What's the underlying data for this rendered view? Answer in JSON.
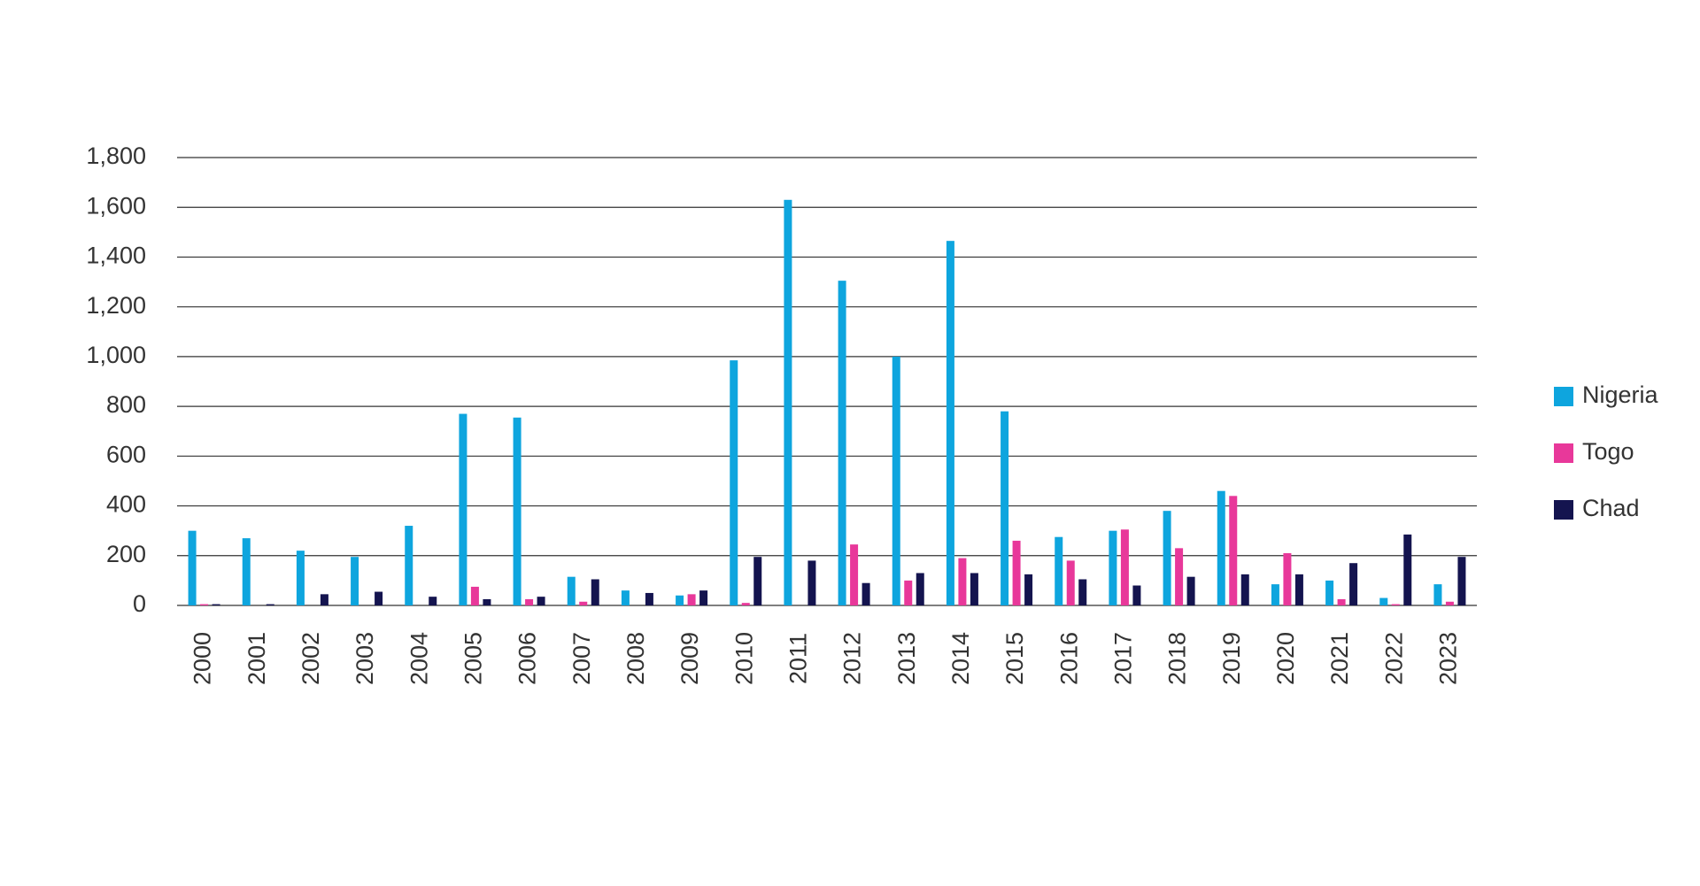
{
  "chart_data": {
    "type": "bar",
    "categories": [
      "2000",
      "2001",
      "2002",
      "2003",
      "2004",
      "2005",
      "2006",
      "2007",
      "2008",
      "2009",
      "2010",
      "2011",
      "2012",
      "2013",
      "2014",
      "2015",
      "2016",
      "2017",
      "2018",
      "2019",
      "2020",
      "2021",
      "2022",
      "2023"
    ],
    "series": [
      {
        "name": "Nigeria",
        "color": "#0ea5de",
        "values": [
          300,
          270,
          220,
          195,
          320,
          770,
          755,
          115,
          60,
          40,
          985,
          1630,
          1305,
          1000,
          1465,
          780,
          275,
          300,
          380,
          460,
          85,
          100,
          30,
          85
        ]
      },
      {
        "name": "Togo",
        "color": "#e8389a",
        "values": [
          5,
          0,
          0,
          0,
          0,
          75,
          25,
          15,
          0,
          45,
          10,
          0,
          245,
          100,
          190,
          260,
          180,
          305,
          230,
          440,
          210,
          25,
          5,
          15
        ]
      },
      {
        "name": "Chad",
        "color": "#14144f",
        "values": [
          5,
          5,
          45,
          55,
          35,
          25,
          35,
          105,
          50,
          60,
          195,
          180,
          90,
          130,
          130,
          125,
          105,
          80,
          115,
          125,
          125,
          170,
          285,
          195
        ]
      }
    ],
    "ylim": [
      0,
      1800
    ],
    "yticks": [
      0,
      200,
      400,
      600,
      800,
      {
        "value": 1000,
        "label": "1,000"
      },
      {
        "value": 1200,
        "label": "1,200"
      },
      {
        "value": 1400,
        "label": "1,400"
      },
      {
        "value": 1600,
        "label": "1,600"
      },
      {
        "value": 1800,
        "label": "1,800"
      }
    ],
    "grid": true,
    "legend": "right"
  }
}
